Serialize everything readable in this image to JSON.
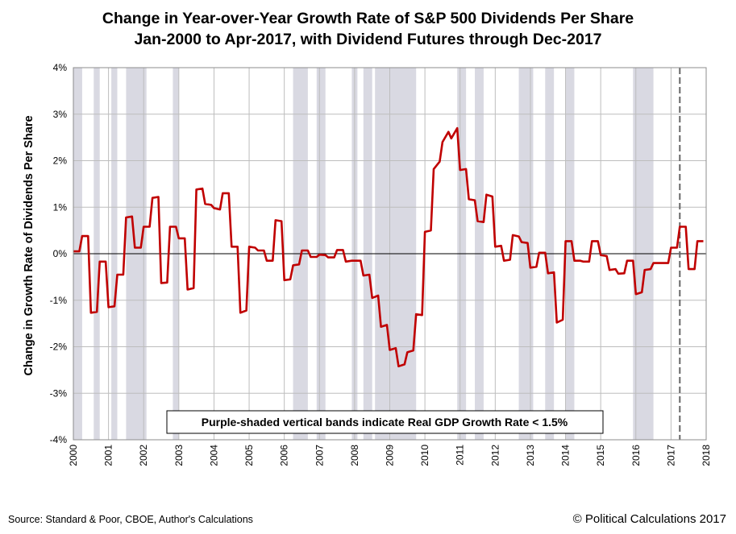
{
  "header": {
    "title_line1": "Change in Year-over-Year Growth Rate of  S&P 500 Dividends Per Share",
    "title_line2": "Jan-2000 to Apr-2017, with Dividend Futures through Dec-2017"
  },
  "footer": {
    "source": "Source: Standard & Poor, CBOE, Author's Calculations",
    "copyright": "© Political Calculations 2017"
  },
  "chart_data": {
    "type": "line",
    "title": "Change in Year-over-Year Growth Rate of  S&P 500 Dividends Per Share",
    "subtitle": "Jan-2000 to Apr-2017, with Dividend Futures through Dec-2017",
    "xlabel": "",
    "ylabel": "Change in Growth Rate of Dividends Per Share",
    "xlim": [
      2000,
      2018
    ],
    "ylim": [
      -4,
      4
    ],
    "y_ticks": [
      {
        "value": 4,
        "label": "4%"
      },
      {
        "value": 3,
        "label": "3%"
      },
      {
        "value": 2,
        "label": "2%"
      },
      {
        "value": 1,
        "label": "1%"
      },
      {
        "value": 0,
        "label": "0%"
      },
      {
        "value": -1,
        "label": "-1%"
      },
      {
        "value": -2,
        "label": "-2%"
      },
      {
        "value": -3,
        "label": "-3%"
      },
      {
        "value": -4,
        "label": "-4%"
      }
    ],
    "x_ticks": [
      {
        "value": 2000,
        "label": "2000"
      },
      {
        "value": 2001,
        "label": "2001"
      },
      {
        "value": 2002,
        "label": "2002"
      },
      {
        "value": 2003,
        "label": "2003"
      },
      {
        "value": 2004,
        "label": "2004"
      },
      {
        "value": 2005,
        "label": "2005"
      },
      {
        "value": 2006,
        "label": "2006"
      },
      {
        "value": 2007,
        "label": "2007"
      },
      {
        "value": 2008,
        "label": "2008"
      },
      {
        "value": 2009,
        "label": "2009"
      },
      {
        "value": 2010,
        "label": "2010"
      },
      {
        "value": 2011,
        "label": "2011"
      },
      {
        "value": 2012,
        "label": "2012"
      },
      {
        "value": 2013,
        "label": "2013"
      },
      {
        "value": 2014,
        "label": "2014"
      },
      {
        "value": 2015,
        "label": "2015"
      },
      {
        "value": 2016,
        "label": "2016"
      },
      {
        "value": 2017,
        "label": "2017"
      },
      {
        "value": 2018,
        "label": "2018"
      }
    ],
    "grid": true,
    "series": [
      {
        "name": "Change in YoY Growth Rate of S&P 500 Dividends Per Share",
        "color": "#c00000",
        "points": [
          [
            2000.0,
            0.05
          ],
          [
            2000.17,
            0.05
          ],
          [
            2000.25,
            0.38
          ],
          [
            2000.42,
            0.38
          ],
          [
            2000.5,
            -1.27
          ],
          [
            2000.67,
            -1.25
          ],
          [
            2000.75,
            -0.17
          ],
          [
            2000.92,
            -0.17
          ],
          [
            2001.0,
            -1.15
          ],
          [
            2001.17,
            -1.13
          ],
          [
            2001.25,
            -0.45
          ],
          [
            2001.42,
            -0.45
          ],
          [
            2001.5,
            0.78
          ],
          [
            2001.67,
            0.8
          ],
          [
            2001.75,
            0.13
          ],
          [
            2001.92,
            0.13
          ],
          [
            2002.0,
            0.58
          ],
          [
            2002.17,
            0.58
          ],
          [
            2002.25,
            1.2
          ],
          [
            2002.42,
            1.22
          ],
          [
            2002.5,
            -0.63
          ],
          [
            2002.67,
            -0.62
          ],
          [
            2002.75,
            0.58
          ],
          [
            2002.92,
            0.58
          ],
          [
            2003.0,
            0.33
          ],
          [
            2003.17,
            0.33
          ],
          [
            2003.25,
            -0.77
          ],
          [
            2003.42,
            -0.74
          ],
          [
            2003.5,
            1.38
          ],
          [
            2003.67,
            1.4
          ],
          [
            2003.75,
            1.07
          ],
          [
            2003.92,
            1.05
          ],
          [
            2004.0,
            0.98
          ],
          [
            2004.17,
            0.95
          ],
          [
            2004.25,
            1.3
          ],
          [
            2004.42,
            1.3
          ],
          [
            2004.5,
            0.15
          ],
          [
            2004.67,
            0.15
          ],
          [
            2004.75,
            -1.27
          ],
          [
            2004.92,
            -1.22
          ],
          [
            2005.0,
            0.15
          ],
          [
            2005.17,
            0.13
          ],
          [
            2005.25,
            0.07
          ],
          [
            2005.42,
            0.07
          ],
          [
            2005.5,
            -0.15
          ],
          [
            2005.67,
            -0.15
          ],
          [
            2005.75,
            0.72
          ],
          [
            2005.92,
            0.7
          ],
          [
            2006.0,
            -0.57
          ],
          [
            2006.17,
            -0.55
          ],
          [
            2006.25,
            -0.25
          ],
          [
            2006.42,
            -0.23
          ],
          [
            2006.5,
            0.07
          ],
          [
            2006.67,
            0.07
          ],
          [
            2006.75,
            -0.07
          ],
          [
            2006.92,
            -0.07
          ],
          [
            2007.0,
            -0.02
          ],
          [
            2007.17,
            -0.03
          ],
          [
            2007.25,
            -0.08
          ],
          [
            2007.42,
            -0.08
          ],
          [
            2007.5,
            0.08
          ],
          [
            2007.67,
            0.08
          ],
          [
            2007.75,
            -0.17
          ],
          [
            2007.92,
            -0.15
          ],
          [
            2008.0,
            -0.15
          ],
          [
            2008.17,
            -0.15
          ],
          [
            2008.25,
            -0.47
          ],
          [
            2008.42,
            -0.45
          ],
          [
            2008.5,
            -0.95
          ],
          [
            2008.67,
            -0.9
          ],
          [
            2008.75,
            -1.57
          ],
          [
            2008.92,
            -1.53
          ],
          [
            2009.0,
            -2.07
          ],
          [
            2009.17,
            -2.03
          ],
          [
            2009.25,
            -2.42
          ],
          [
            2009.42,
            -2.38
          ],
          [
            2009.5,
            -2.12
          ],
          [
            2009.67,
            -2.08
          ],
          [
            2009.75,
            -1.3
          ],
          [
            2009.92,
            -1.32
          ],
          [
            2010.0,
            0.47
          ],
          [
            2010.17,
            0.5
          ],
          [
            2010.25,
            1.82
          ],
          [
            2010.42,
            1.98
          ],
          [
            2010.5,
            2.4
          ],
          [
            2010.67,
            2.62
          ],
          [
            2010.75,
            2.48
          ],
          [
            2010.92,
            2.7
          ],
          [
            2011.0,
            1.8
          ],
          [
            2011.17,
            1.82
          ],
          [
            2011.25,
            1.17
          ],
          [
            2011.42,
            1.15
          ],
          [
            2011.5,
            0.7
          ],
          [
            2011.67,
            0.68
          ],
          [
            2011.75,
            1.27
          ],
          [
            2011.92,
            1.23
          ],
          [
            2012.0,
            0.15
          ],
          [
            2012.17,
            0.17
          ],
          [
            2012.25,
            -0.15
          ],
          [
            2012.42,
            -0.13
          ],
          [
            2012.5,
            0.4
          ],
          [
            2012.67,
            0.37
          ],
          [
            2012.75,
            0.25
          ],
          [
            2012.92,
            0.23
          ],
          [
            2013.0,
            -0.3
          ],
          [
            2013.17,
            -0.28
          ],
          [
            2013.25,
            0.02
          ],
          [
            2013.42,
            0.02
          ],
          [
            2013.5,
            -0.42
          ],
          [
            2013.67,
            -0.4
          ],
          [
            2013.75,
            -1.48
          ],
          [
            2013.92,
            -1.42
          ],
          [
            2014.0,
            0.27
          ],
          [
            2014.17,
            0.27
          ],
          [
            2014.25,
            -0.15
          ],
          [
            2014.42,
            -0.15
          ],
          [
            2014.5,
            -0.17
          ],
          [
            2014.67,
            -0.17
          ],
          [
            2014.75,
            0.27
          ],
          [
            2014.92,
            0.27
          ],
          [
            2015.0,
            -0.03
          ],
          [
            2015.17,
            -0.05
          ],
          [
            2015.25,
            -0.35
          ],
          [
            2015.42,
            -0.33
          ],
          [
            2015.5,
            -0.43
          ],
          [
            2015.67,
            -0.42
          ],
          [
            2015.75,
            -0.15
          ],
          [
            2015.92,
            -0.15
          ],
          [
            2016.0,
            -0.87
          ],
          [
            2016.17,
            -0.83
          ],
          [
            2016.25,
            -0.35
          ],
          [
            2016.42,
            -0.33
          ],
          [
            2016.5,
            -0.2
          ],
          [
            2016.67,
            -0.2
          ],
          [
            2016.75,
            -0.2
          ],
          [
            2016.92,
            -0.2
          ],
          [
            2017.0,
            0.13
          ],
          [
            2017.17,
            0.13
          ],
          [
            2017.25,
            0.58
          ],
          [
            2017.42,
            0.58
          ],
          [
            2017.5,
            -0.33
          ],
          [
            2017.67,
            -0.33
          ],
          [
            2017.75,
            0.27
          ],
          [
            2017.92,
            0.27
          ]
        ]
      }
    ],
    "shaded_bands": {
      "meaning": "Real GDP Growth Rate < 1.5%",
      "color": "#d9d9e2",
      "ranges": [
        [
          2000.0,
          2000.25
        ],
        [
          2000.58,
          2000.75
        ],
        [
          2001.08,
          2001.25
        ],
        [
          2001.5,
          2002.08
        ],
        [
          2002.83,
          2003.0
        ],
        [
          2006.25,
          2006.67
        ],
        [
          2006.92,
          2007.17
        ],
        [
          2007.92,
          2008.08
        ],
        [
          2008.25,
          2008.5
        ],
        [
          2008.58,
          2009.75
        ],
        [
          2010.92,
          2011.17
        ],
        [
          2011.42,
          2011.67
        ],
        [
          2012.67,
          2013.08
        ],
        [
          2013.42,
          2013.67
        ],
        [
          2014.0,
          2014.25
        ],
        [
          2015.92,
          2016.5
        ]
      ]
    },
    "reference_line": {
      "x": 2017.25,
      "style": "dashed",
      "meaning": "start of dividend futures"
    },
    "annotation": "Purple-shaded vertical bands indicate Real GDP Growth Rate < 1.5%"
  }
}
